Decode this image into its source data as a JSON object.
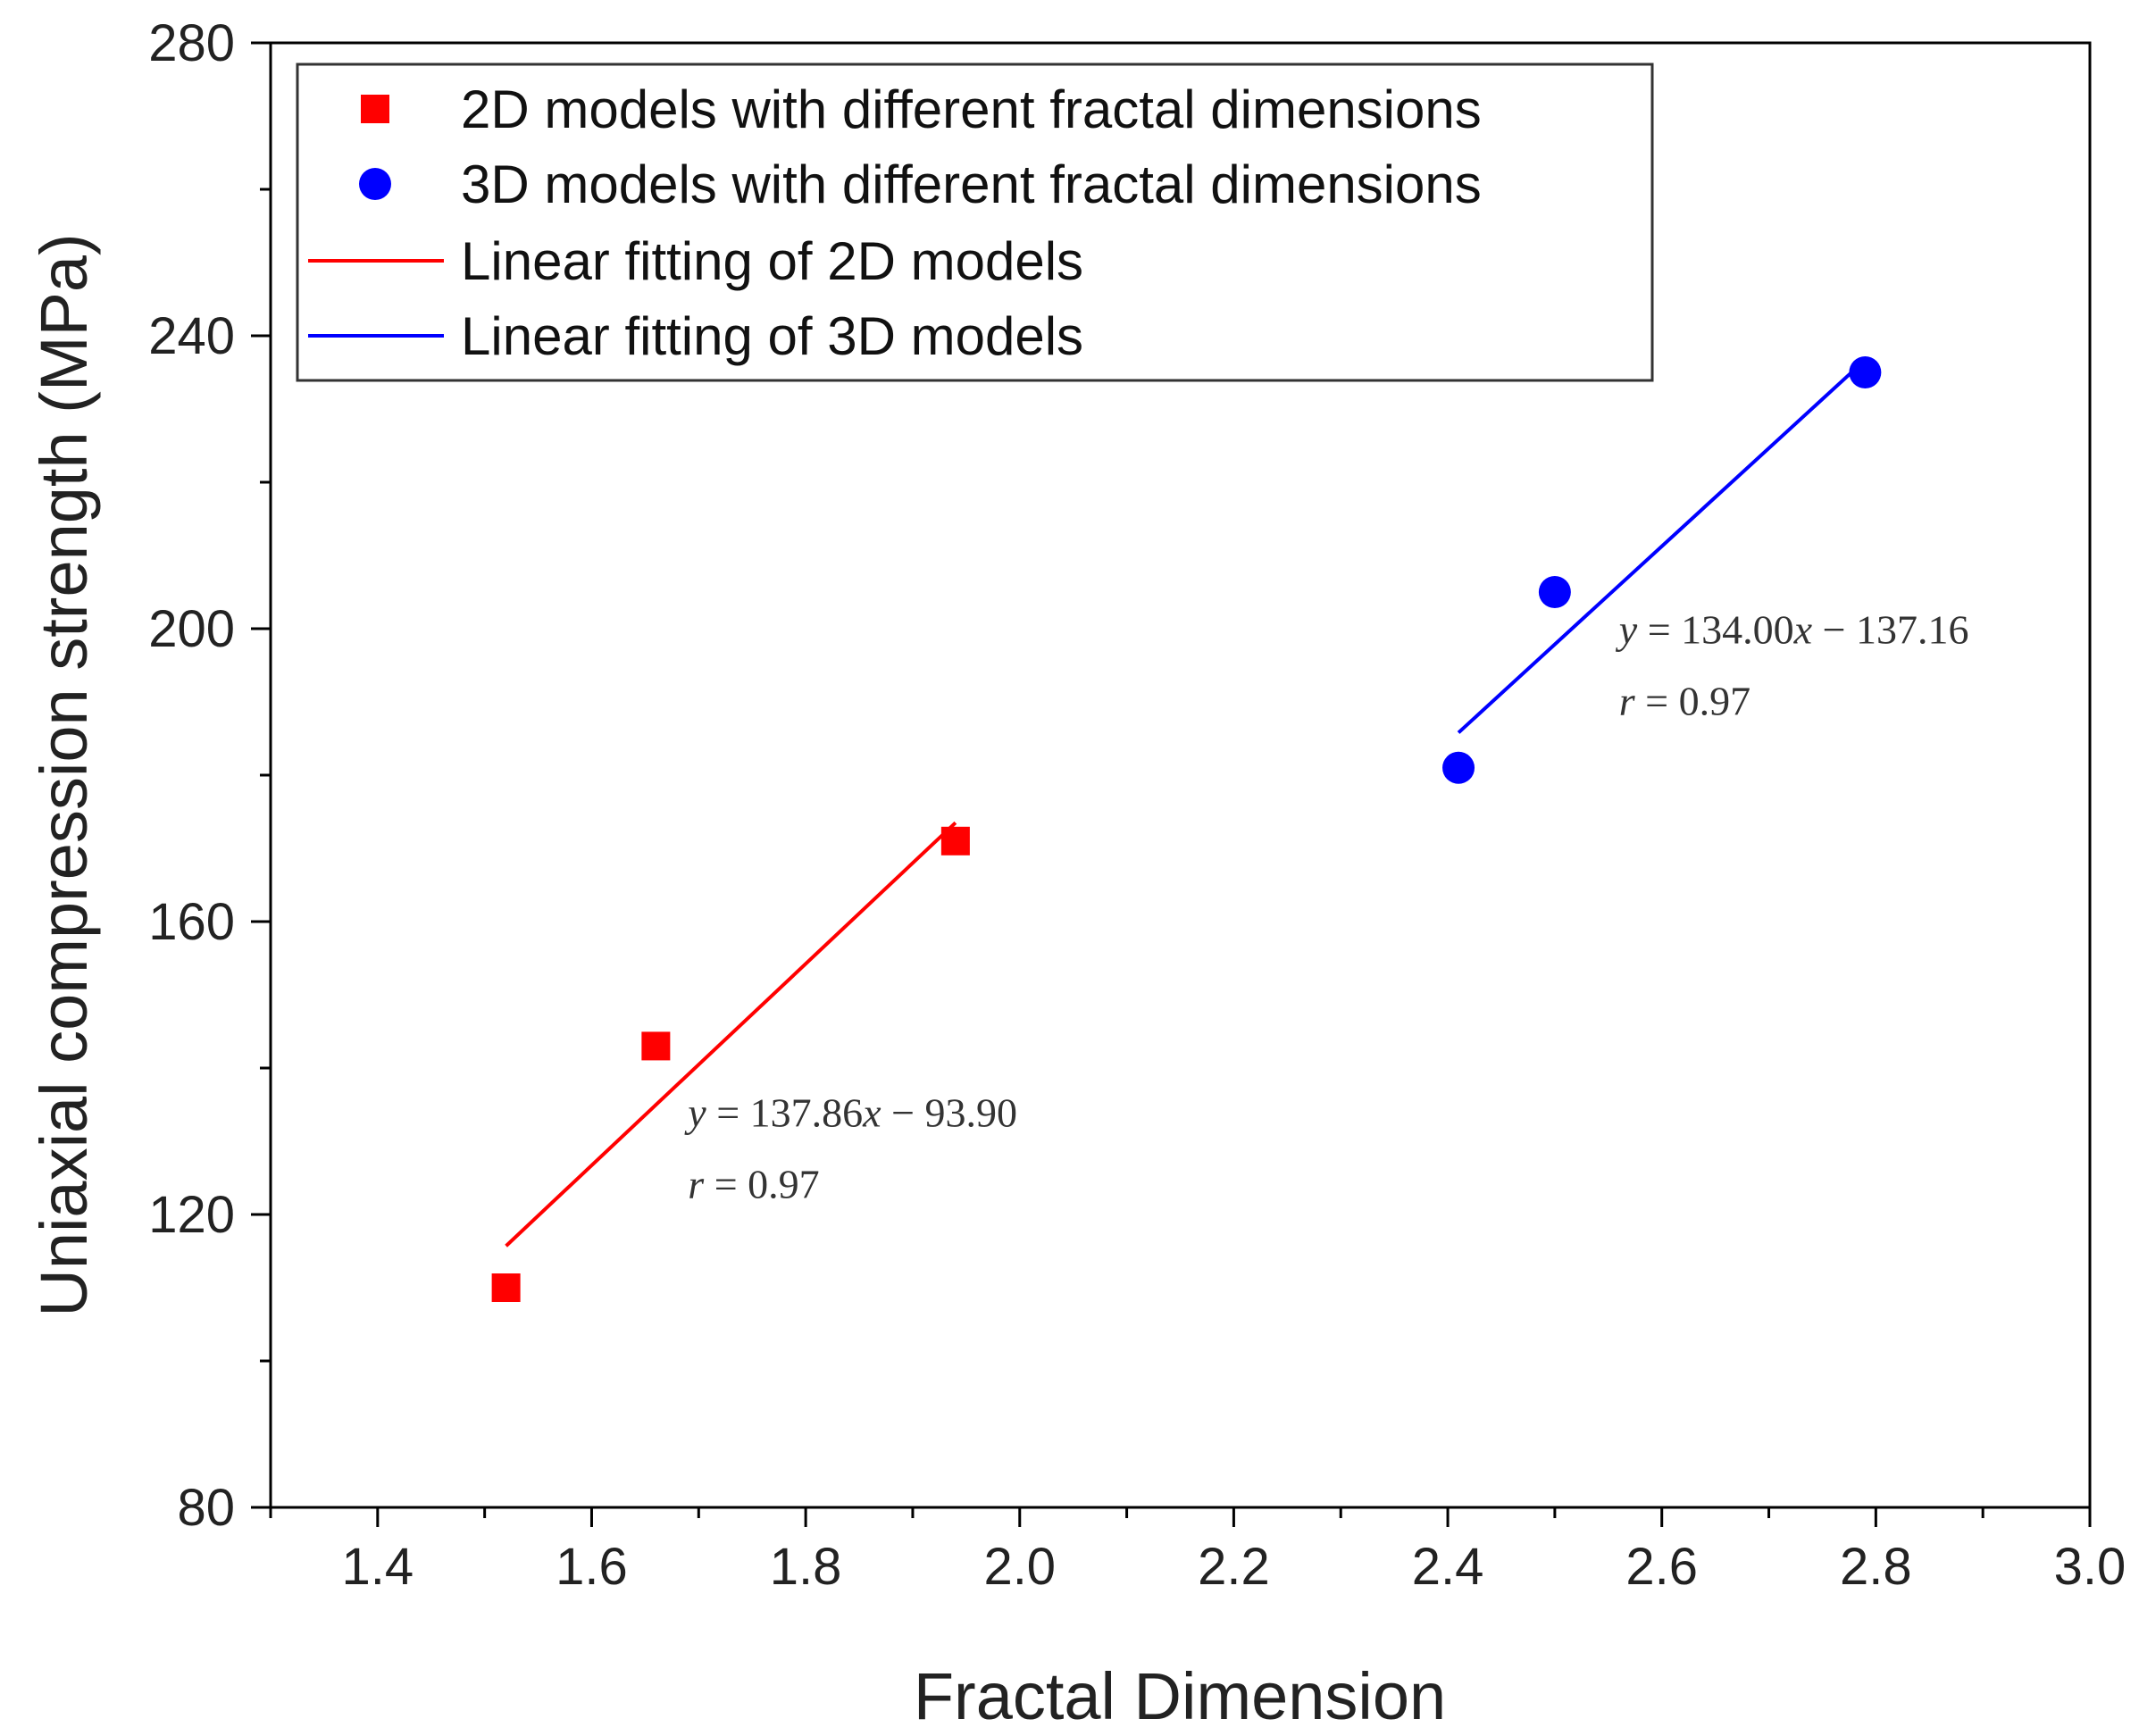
{
  "chart_data": {
    "type": "scatter",
    "title": "",
    "xlabel": "Fractal Dimension",
    "ylabel": "Uniaxial compression strength (MPa)",
    "xlim": [
      1.3,
      3.0
    ],
    "ylim": [
      80,
      280
    ],
    "xticks": [
      1.4,
      1.6,
      1.8,
      2.0,
      2.2,
      2.4,
      2.6,
      2.8,
      3.0
    ],
    "xtick_labels": [
      "1.4",
      "1.6",
      "1.8",
      "2.0",
      "2.2",
      "2.4",
      "2.6",
      "2.8",
      "3.0"
    ],
    "yticks": [
      80,
      120,
      160,
      200,
      240,
      280
    ],
    "ytick_labels": [
      "80",
      "120",
      "160",
      "200",
      "240",
      "280"
    ],
    "x_minor_step": 0.1,
    "y_minor_step": 20,
    "grid": false,
    "legend_position": "top-left",
    "series": [
      {
        "name": "2D models with different fractal dimensions",
        "kind": "scatter",
        "marker": "square",
        "color": "#ff0000",
        "x": [
          1.52,
          1.66,
          1.94
        ],
        "y": [
          110,
          143,
          171
        ]
      },
      {
        "name": "3D models with different fractal dimensions",
        "kind": "scatter",
        "marker": "circle",
        "color": "#0000ff",
        "x": [
          2.41,
          2.5,
          2.79
        ],
        "y": [
          181,
          205,
          235
        ]
      },
      {
        "name": "Linear fitting of 2D models",
        "kind": "line",
        "color": "#ff0000",
        "x": [
          1.52,
          1.94
        ],
        "y": [
          115.7,
          173.5
        ]
      },
      {
        "name": "Linear fitting of 3D models",
        "kind": "line",
        "color": "#0000ff",
        "x": [
          2.41,
          2.79
        ],
        "y": [
          185.8,
          236.7
        ]
      }
    ],
    "annotations": [
      {
        "id": "fit-2d",
        "at": [
          1.69,
          132
        ],
        "lines": [
          [
            [
              "y",
              true
            ],
            [
              " = 137.86",
              false
            ],
            [
              "x",
              true
            ],
            [
              " − 93.90",
              false
            ]
          ],
          [
            [
              "r",
              true
            ],
            [
              " = 0.97",
              false
            ]
          ]
        ]
      },
      {
        "id": "fit-3d",
        "at": [
          2.56,
          198
        ],
        "lines": [
          [
            [
              "y",
              true
            ],
            [
              " = 134.00",
              false
            ],
            [
              "x",
              true
            ],
            [
              " − 137.16",
              false
            ]
          ],
          [
            [
              "r",
              true
            ],
            [
              " = 0.97",
              false
            ]
          ]
        ]
      }
    ]
  }
}
